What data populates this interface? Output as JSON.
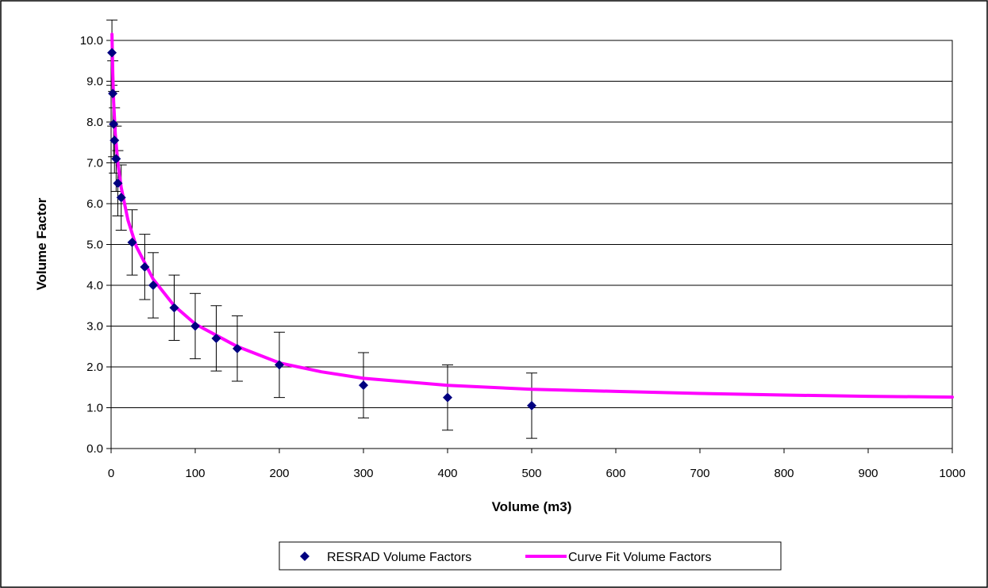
{
  "chart_data": {
    "type": "scatter",
    "title": "",
    "xlabel": "Volume (m3)",
    "ylabel": "Volume Factor",
    "xlim": [
      0,
      1000
    ],
    "ylim": [
      0,
      10
    ],
    "x_ticks": [
      "0",
      "100",
      "200",
      "300",
      "400",
      "500",
      "600",
      "700",
      "800",
      "900",
      "1000"
    ],
    "y_ticks": [
      "0.0",
      "1.0",
      "2.0",
      "3.0",
      "4.0",
      "5.0",
      "6.0",
      "7.0",
      "8.0",
      "9.0",
      "10.0"
    ],
    "grid": "horizontal",
    "legend_position": "bottom",
    "series": [
      {
        "name": "RESRAD Volume Factors",
        "kind": "scatter",
        "marker": "diamond",
        "color": "#000080",
        "error_bar": 0.8,
        "points": [
          {
            "x": 1,
            "y": 9.7
          },
          {
            "x": 2,
            "y": 8.7
          },
          {
            "x": 3,
            "y": 7.95
          },
          {
            "x": 4,
            "y": 7.55
          },
          {
            "x": 6,
            "y": 7.1
          },
          {
            "x": 8,
            "y": 6.5
          },
          {
            "x": 12,
            "y": 6.15
          },
          {
            "x": 25,
            "y": 5.05
          },
          {
            "x": 40,
            "y": 4.45
          },
          {
            "x": 50,
            "y": 4.0
          },
          {
            "x": 75,
            "y": 3.45
          },
          {
            "x": 100,
            "y": 3.0
          },
          {
            "x": 125,
            "y": 2.7
          },
          {
            "x": 150,
            "y": 2.45
          },
          {
            "x": 200,
            "y": 2.05
          },
          {
            "x": 300,
            "y": 1.55
          },
          {
            "x": 400,
            "y": 1.25
          },
          {
            "x": 500,
            "y": 1.05
          }
        ]
      },
      {
        "name": "Curve Fit Volume Factors",
        "kind": "line",
        "color": "#ff00ff",
        "points": [
          {
            "x": 1,
            "y": 10.15
          },
          {
            "x": 2,
            "y": 9.2
          },
          {
            "x": 3,
            "y": 8.5
          },
          {
            "x": 5,
            "y": 7.7
          },
          {
            "x": 8,
            "y": 7.0
          },
          {
            "x": 12,
            "y": 6.4
          },
          {
            "x": 20,
            "y": 5.6
          },
          {
            "x": 30,
            "y": 4.95
          },
          {
            "x": 50,
            "y": 4.15
          },
          {
            "x": 75,
            "y": 3.5
          },
          {
            "x": 100,
            "y": 3.05
          },
          {
            "x": 150,
            "y": 2.5
          },
          {
            "x": 200,
            "y": 2.1
          },
          {
            "x": 250,
            "y": 1.88
          },
          {
            "x": 300,
            "y": 1.72
          },
          {
            "x": 400,
            "y": 1.55
          },
          {
            "x": 500,
            "y": 1.45
          },
          {
            "x": 600,
            "y": 1.4
          },
          {
            "x": 700,
            "y": 1.35
          },
          {
            "x": 800,
            "y": 1.31
          },
          {
            "x": 900,
            "y": 1.28
          },
          {
            "x": 1000,
            "y": 1.26
          }
        ]
      }
    ]
  }
}
